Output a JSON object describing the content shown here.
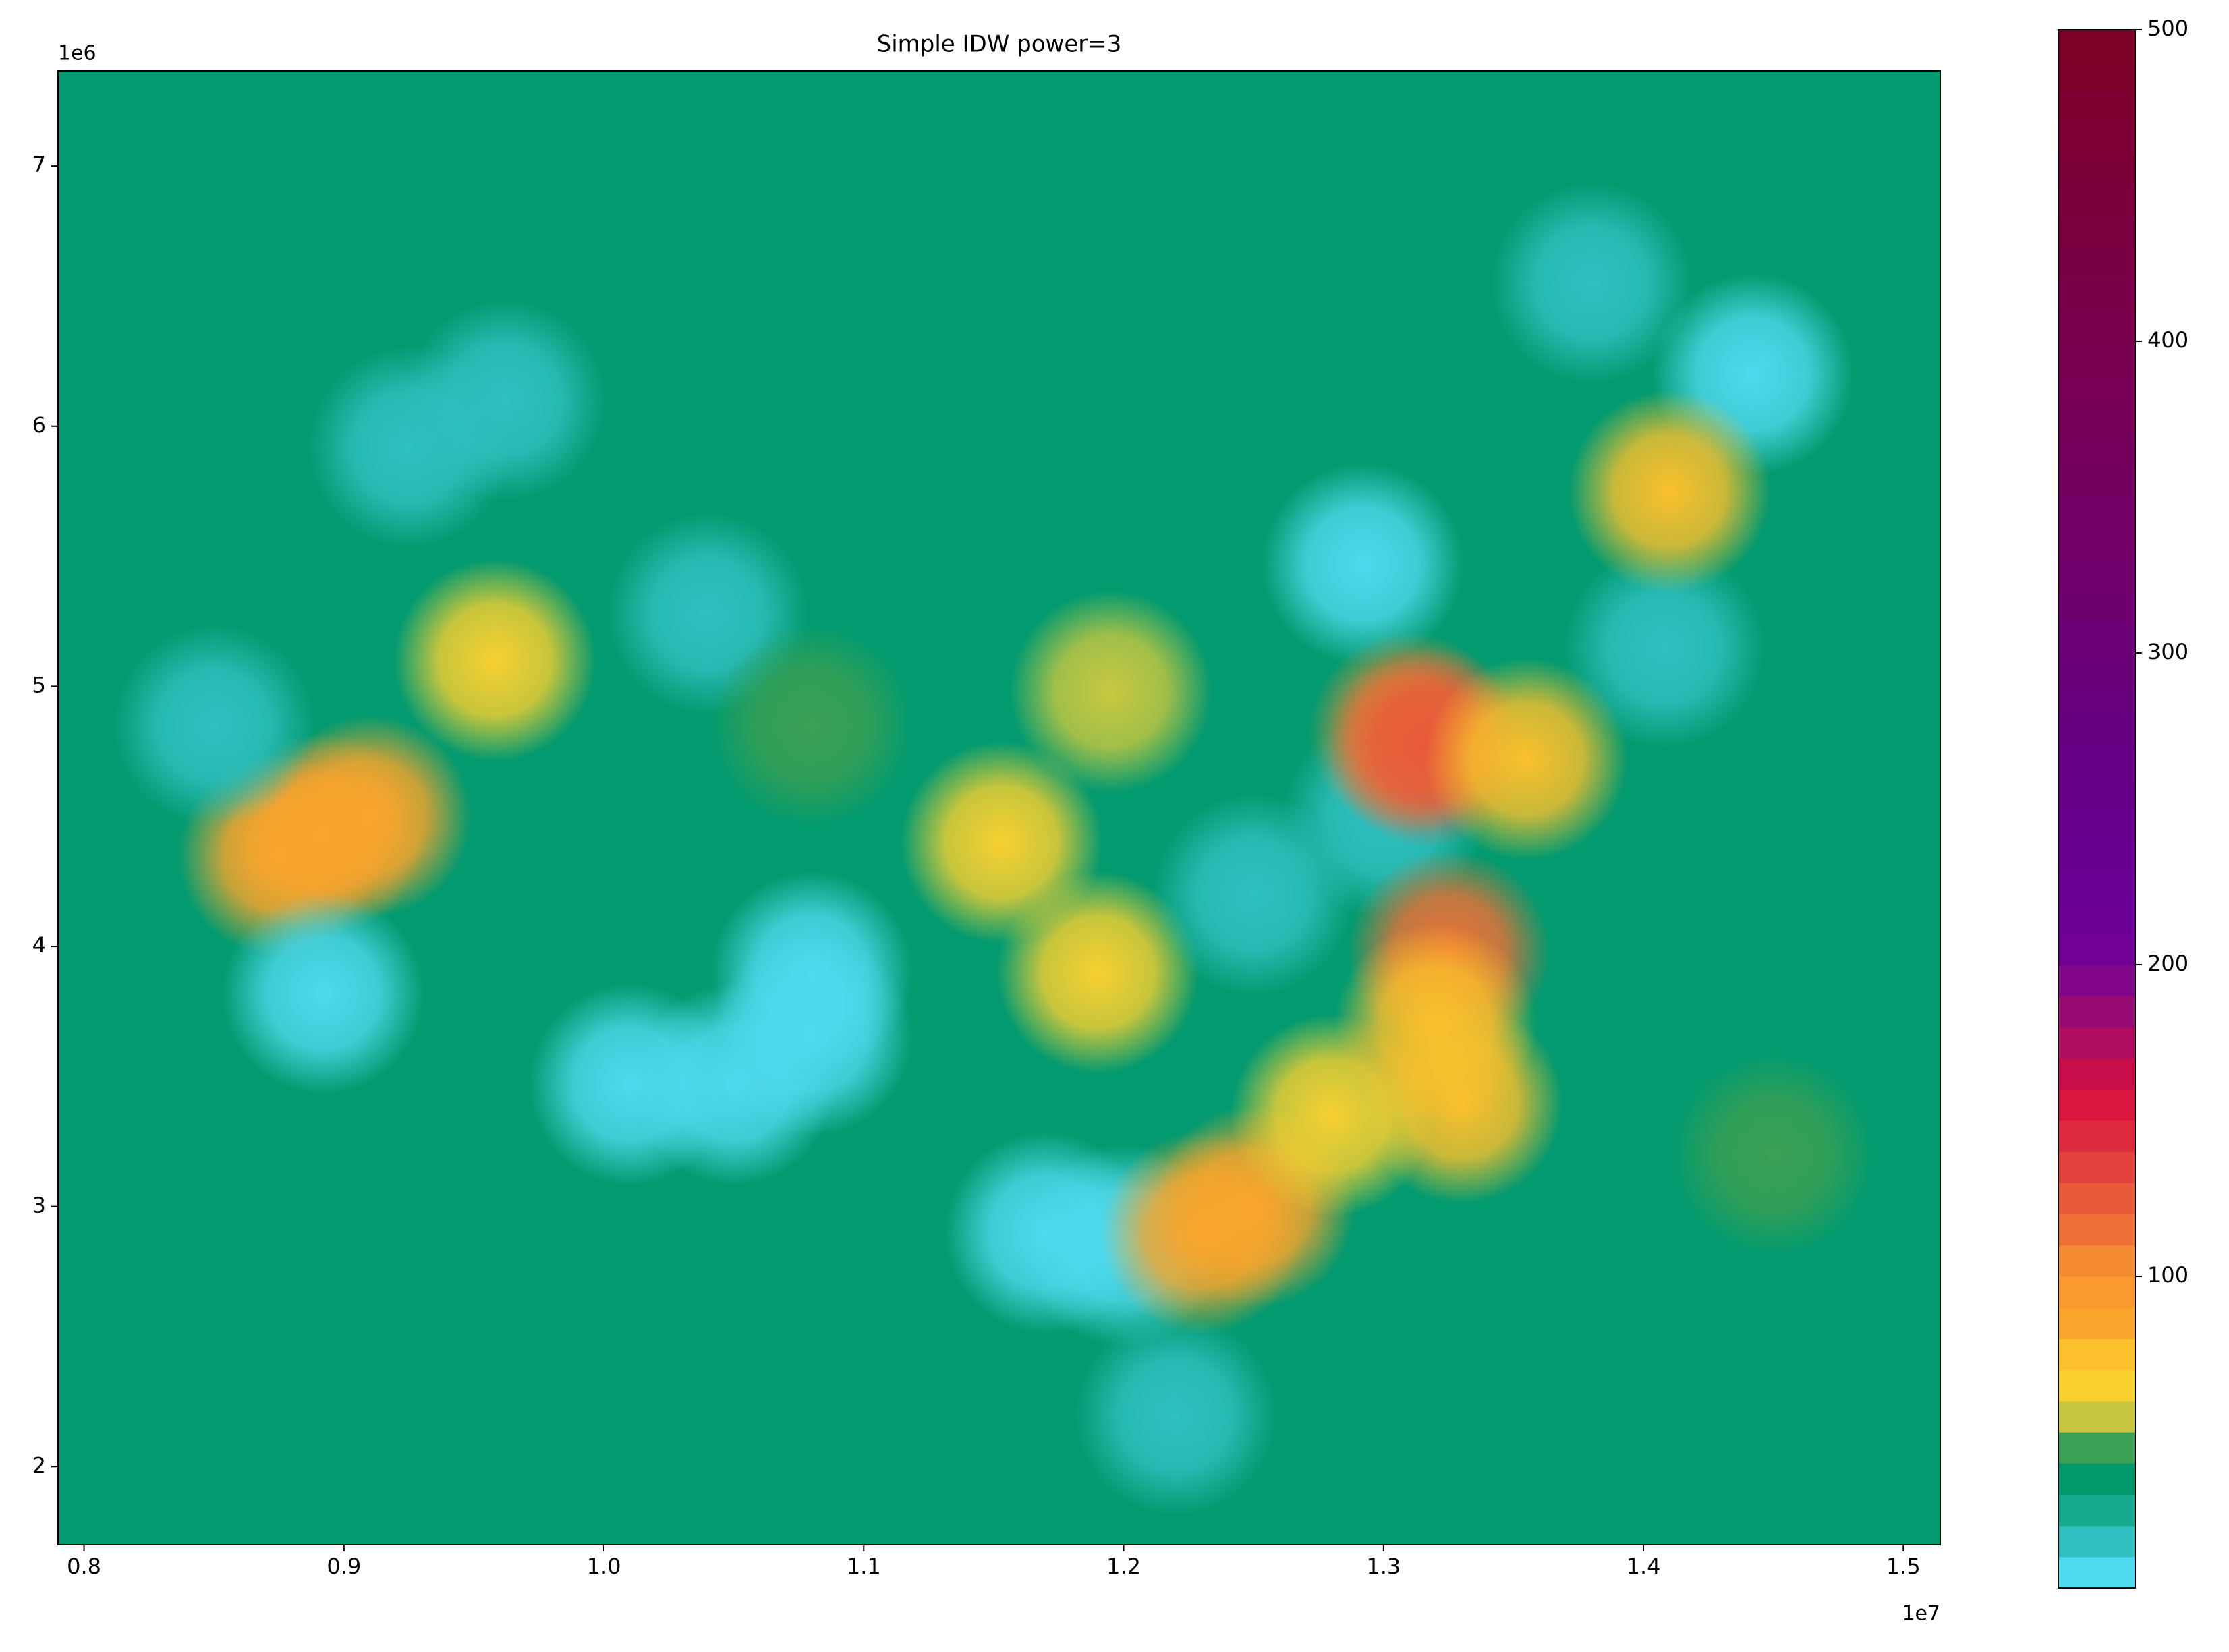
{
  "chart_data": {
    "type": "contour",
    "title": "Simple IDW power=3",
    "x_offset_label": "1e7",
    "y_offset_label": "1e6",
    "xlim": [
      7900000,
      15142000
    ],
    "ylim": [
      1700000,
      7366000
    ],
    "xticks": [
      {
        "value": 8000000,
        "label": "0.8"
      },
      {
        "value": 9000000,
        "label": "0.9"
      },
      {
        "value": 10000000,
        "label": "1.0"
      },
      {
        "value": 11000000,
        "label": "1.1"
      },
      {
        "value": 12000000,
        "label": "1.2"
      },
      {
        "value": 13000000,
        "label": "1.3"
      },
      {
        "value": 14000000,
        "label": "1.4"
      },
      {
        "value": 15000000,
        "label": "1.5"
      }
    ],
    "yticks": [
      {
        "value": 2000000,
        "label": "2"
      },
      {
        "value": 3000000,
        "label": "3"
      },
      {
        "value": 4000000,
        "label": "4"
      },
      {
        "value": 5000000,
        "label": "5"
      },
      {
        "value": 6000000,
        "label": "6"
      },
      {
        "value": 7000000,
        "label": "7"
      }
    ],
    "background": "#039a6f",
    "clim": [
      0,
      500
    ],
    "cticks": [
      100,
      200,
      300,
      400,
      500
    ],
    "colormap": [
      "#4fd9ee",
      "#30c0c2",
      "#16a88c",
      "#02986c",
      "#3aa054",
      "#c8c840",
      "#f8d030",
      "#fbc02c",
      "#f9a52c",
      "#f9992e",
      "#f38a32",
      "#ee7036",
      "#e85a3a",
      "#e2423c",
      "#dc2c3e",
      "#d8163e",
      "#c80e4a",
      "#b00c60",
      "#980a74",
      "#82068a",
      "#700096",
      "#6c0096",
      "#6a0094",
      "#680090",
      "#66008c",
      "#660088",
      "#660084",
      "#660080",
      "#68007c",
      "#6a0078",
      "#6c0074",
      "#6e0070",
      "#70006c",
      "#720068",
      "#730064",
      "#740060",
      "#75005c",
      "#760058",
      "#770054",
      "#780050",
      "#78004c",
      "#790048",
      "#7a0044",
      "#7a0040",
      "#7b003c",
      "#7b0038",
      "#7c0034",
      "#7c002f",
      "#7d002a",
      "#7d0025"
    ],
    "points": {
      "x": [
        14500000,
        8920000,
        8750000,
        9100000,
        9580000,
        8920000,
        10100000,
        10500000,
        10800000,
        10800000,
        9250000,
        9620000,
        8500000,
        10400000,
        12920000,
        13800000,
        14420000,
        14080000,
        13000000,
        12200000,
        12000000,
        11700000,
        13100000,
        13170000,
        13250000,
        13300000,
        12300000,
        12500000,
        14100000,
        13550000,
        10800000,
        11950000,
        11900000,
        11530000,
        12800000,
        13200000,
        12500000
      ],
      "y": [
        3200000,
        4430000,
        4350000,
        4500000,
        5100000,
        3820000,
        3470000,
        3470000,
        3660000,
        3900000,
        5920000,
        6100000,
        4850000,
        5280000,
        5470000,
        6550000,
        6200000,
        5150000,
        4500000,
        2200000,
        2850000,
        2900000,
        4820000,
        4770000,
        3980000,
        3400000,
        2900000,
        3000000,
        5750000,
        4720000,
        4850000,
        4980000,
        3900000,
        4400000,
        3350000,
        3700000,
        4200000
      ],
      "values": [
        40,
        90,
        85,
        85,
        65,
        5,
        3,
        5,
        4,
        8,
        12,
        14,
        12,
        14,
        3,
        12,
        8,
        10,
        15,
        10,
        5,
        8,
        100,
        120,
        110,
        75,
        80,
        85,
        75,
        70,
        45,
        55,
        60,
        65,
        60,
        70,
        18
      ]
    }
  }
}
